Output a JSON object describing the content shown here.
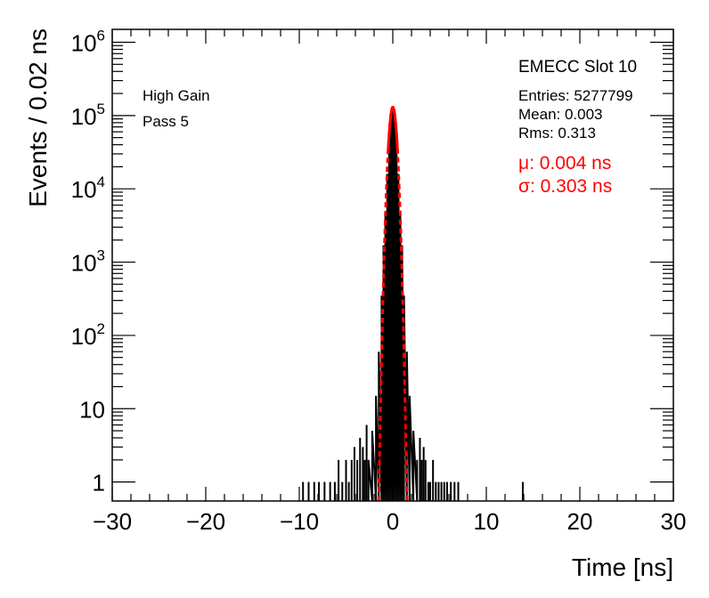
{
  "chart_data": {
    "type": "histogram",
    "xlabel": "Time [ns]",
    "ylabel": "Events / 0.02 ns",
    "xlim": [
      -30,
      30
    ],
    "ylim": [
      0.55,
      1500000
    ],
    "y_scale": "log",
    "bin_width": 0.02,
    "x_ticks": [
      -30,
      -20,
      -10,
      0,
      10,
      20,
      30
    ],
    "x_tick_labels": [
      "−30",
      "−20",
      "−10",
      "0",
      "10",
      "20",
      "30"
    ],
    "y_ticks": [
      1,
      10,
      100,
      1000,
      10000,
      100000,
      1000000
    ],
    "y_tick_labels": [
      {
        "base": "1",
        "exp": ""
      },
      {
        "base": "10",
        "exp": ""
      },
      {
        "base": "10",
        "exp": "2"
      },
      {
        "base": "10",
        "exp": "3"
      },
      {
        "base": "10",
        "exp": "4"
      },
      {
        "base": "10",
        "exp": "5"
      },
      {
        "base": "10",
        "exp": "6"
      }
    ],
    "annotations_left": [
      "High Gain",
      "Pass 5"
    ],
    "stats": {
      "title": "EMECC Slot 10",
      "entries": "Entries: 5277799",
      "mean": "Mean: 0.003",
      "rms": "Rms: 0.313"
    },
    "fit": {
      "mu": 0.004,
      "sigma": 0.303,
      "peak": 130000,
      "mu_label": "μ: 0.004 ns",
      "sigma_label": "σ: 0.303 ns",
      "color": "#ff0000",
      "range_sigma": 5
    },
    "core": {
      "x": [
        -2.6,
        -2.2,
        -1.8,
        -1.5,
        -1.2,
        -1.0,
        -0.8,
        -0.6,
        -0.4,
        -0.2,
        0.0,
        0.2,
        0.4,
        0.6,
        0.8,
        1.0,
        1.2,
        1.5,
        1.8,
        2.2,
        2.6
      ],
      "y": [
        2,
        5,
        15,
        60,
        350,
        1700,
        5000,
        16000,
        50000,
        100000,
        130000,
        100000,
        50000,
        16000,
        5000,
        1700,
        350,
        60,
        15,
        5,
        2
      ]
    },
    "spikes": {
      "x": [
        -9.6,
        -9.0,
        -8.4,
        -7.9,
        -7.3,
        -6.7,
        -6.2,
        -5.8,
        -5.4,
        -5.0,
        -4.7,
        -4.4,
        -4.1,
        -3.8,
        -3.5,
        -3.2,
        -3.0,
        -2.8,
        2.9,
        3.1,
        3.3,
        3.5,
        3.8,
        4.0,
        4.3,
        4.6,
        4.9,
        5.2,
        5.5,
        5.8,
        6.2,
        6.6,
        7.0,
        13.9
      ],
      "y": [
        1,
        1,
        1,
        1,
        1,
        1,
        1,
        2,
        1,
        2,
        1,
        2,
        3,
        2,
        4,
        3,
        2,
        6,
        4,
        2,
        3,
        2,
        1,
        1,
        2,
        1,
        1,
        1,
        1,
        1,
        1,
        1,
        1,
        1
      ]
    },
    "colors": {
      "data": "#000000",
      "fit": "#ff0000"
    },
    "grid": false,
    "legend": "none"
  }
}
